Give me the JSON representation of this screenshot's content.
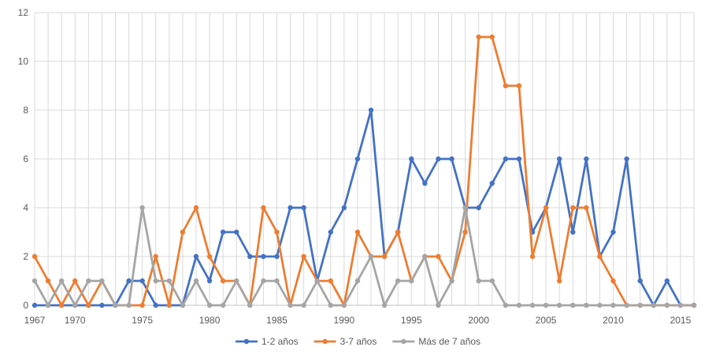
{
  "chart_data": {
    "type": "line",
    "title": "",
    "xlabel": "",
    "ylabel": "",
    "x": [
      1967,
      1968,
      1969,
      1970,
      1971,
      1972,
      1973,
      1974,
      1975,
      1976,
      1977,
      1978,
      1979,
      1980,
      1981,
      1982,
      1983,
      1984,
      1985,
      1986,
      1987,
      1988,
      1989,
      1990,
      1991,
      1992,
      1993,
      1994,
      1995,
      1996,
      1997,
      1998,
      1999,
      2000,
      2001,
      2002,
      2003,
      2004,
      2005,
      2006,
      2007,
      2008,
      2009,
      2010,
      2011,
      2012,
      2013,
      2014,
      2015,
      2016
    ],
    "x_tick_labels": [
      "1967",
      "1970",
      "1975",
      "1980",
      "1985",
      "1990",
      "1995",
      "2000",
      "2005",
      "2010",
      "2015"
    ],
    "y_tick_labels": [
      "0",
      "2",
      "4",
      "6",
      "8",
      "10",
      "12"
    ],
    "ylim": [
      0,
      12
    ],
    "grid": {
      "horizontal": true,
      "vertical": true
    },
    "legend_position": "bottom",
    "series": [
      {
        "name": "1-2 años",
        "color": "#4472c4",
        "values": [
          0,
          0,
          0,
          0,
          0,
          0,
          0,
          1,
          1,
          0,
          0,
          0,
          2,
          1,
          3,
          3,
          2,
          2,
          2,
          4,
          4,
          1,
          3,
          4,
          6,
          8,
          2,
          3,
          6,
          5,
          6,
          6,
          4,
          4,
          5,
          6,
          6,
          3,
          4,
          6,
          3,
          6,
          2,
          3,
          6,
          1,
          0,
          1,
          0,
          0
        ]
      },
      {
        "name": "3-7 años",
        "color": "#ed7d31",
        "values": [
          2,
          1,
          0,
          1,
          0,
          1,
          0,
          0,
          0,
          2,
          0,
          3,
          4,
          2,
          1,
          1,
          0,
          4,
          3,
          0,
          2,
          1,
          1,
          0,
          3,
          2,
          2,
          3,
          1,
          2,
          2,
          1,
          3,
          11,
          11,
          9,
          9,
          2,
          4,
          1,
          4,
          4,
          2,
          1,
          0,
          0,
          0,
          0,
          0,
          0
        ]
      },
      {
        "name": "Más de 7 años",
        "color": "#a5a5a5",
        "values": [
          1,
          0,
          1,
          0,
          1,
          1,
          0,
          0,
          4,
          1,
          1,
          0,
          1,
          0,
          0,
          1,
          0,
          1,
          1,
          0,
          0,
          1,
          0,
          0,
          1,
          2,
          0,
          1,
          1,
          2,
          0,
          1,
          4,
          1,
          1,
          0,
          0,
          0,
          0,
          0,
          0,
          0,
          0,
          0,
          0,
          0,
          0,
          0,
          0,
          0
        ]
      }
    ]
  }
}
